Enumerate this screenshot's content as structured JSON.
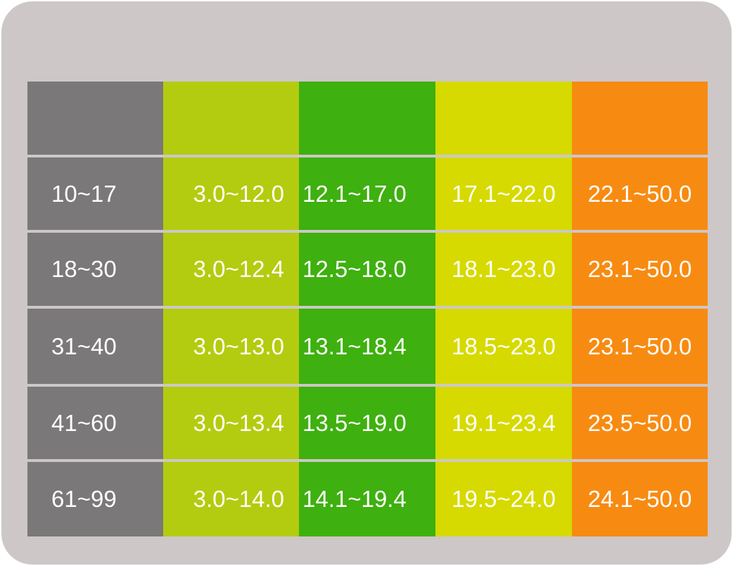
{
  "header": [
    "",
    "",
    "",
    "",
    ""
  ],
  "rows": [
    [
      "10~17",
      "3.0~12.0",
      "12.1~17.0",
      "17.1~22.0",
      "22.1~50.0"
    ],
    [
      "18~30",
      "3.0~12.4",
      "12.5~18.0",
      "18.1~23.0",
      "23.1~50.0"
    ],
    [
      "31~40",
      "3.0~13.0",
      "13.1~18.4",
      "18.5~23.0",
      "23.1~50.0"
    ],
    [
      "41~60",
      "3.0~13.4",
      "13.5~19.0",
      "19.1~23.4",
      "23.5~50.0"
    ],
    [
      "61~99",
      "3.0~14.0",
      "14.1~19.4",
      "19.5~24.0",
      "24.1~50.0"
    ]
  ],
  "colors": {
    "panel": "#cdc7c7",
    "label_column": "#7a7878",
    "column_1": "#b3cc0f",
    "column_2": "#3eb00f",
    "column_3": "#d6da00",
    "column_4": "#f78b12"
  }
}
